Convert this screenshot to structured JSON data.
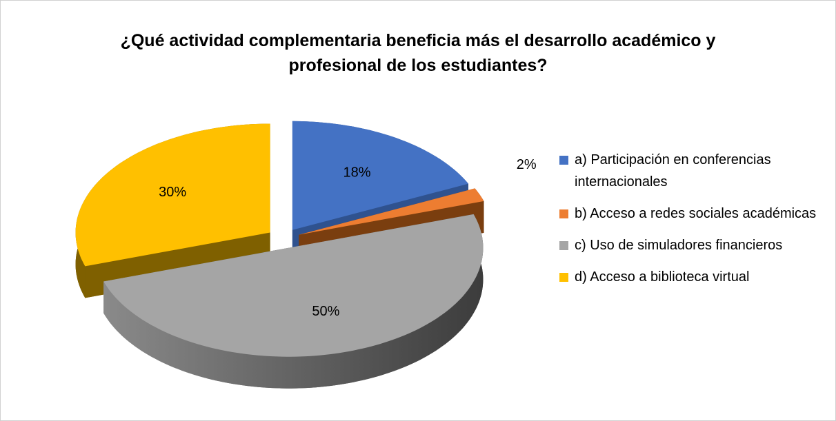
{
  "chart_data": {
    "type": "pie",
    "title": "¿Qué actividad complementaria beneficia más el desarrollo académico y profesional de los estudiantes?",
    "categories": [
      "a) Participación en conferencias internacionales",
      "b) Acceso a redes sociales académicas",
      "c) Uso de simuladores financieros",
      "d) Acceso a biblioteca virtual"
    ],
    "values": [
      18,
      2,
      50,
      30
    ],
    "value_labels": [
      "18%",
      "2%",
      "50%",
      "30%"
    ],
    "colors": [
      "#4472c4",
      "#ed7d31",
      "#a5a5a5",
      "#ffc000"
    ],
    "legend": "right"
  }
}
